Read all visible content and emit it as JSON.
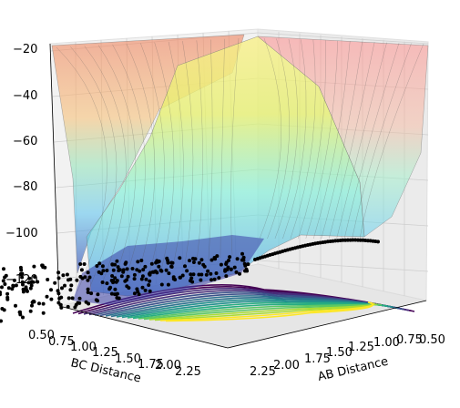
{
  "chart_data": {
    "type": "surface3d",
    "title": "",
    "z_axis": {
      "ticks": [
        "−20",
        "−40",
        "−60",
        "−80",
        "−100",
        "−120"
      ],
      "range": [
        -130,
        -20
      ]
    },
    "bc_axis": {
      "label": "BC Distance",
      "ticks": [
        "0.50",
        "0.75",
        "1.00",
        "1.25",
        "1.50",
        "1.75",
        "2.00",
        "2.25"
      ],
      "range": [
        0.5,
        2.3
      ]
    },
    "ab_axis": {
      "label": "AB Distance",
      "ticks": [
        "2.25",
        "2.00",
        "1.75",
        "1.50",
        "1.25",
        "1.00",
        "0.75",
        "0.50"
      ],
      "range": [
        0.5,
        2.3
      ]
    },
    "surface_colormap": "jet",
    "contour_colormap": "viridis",
    "trajectory_color": "#000000",
    "grid": true
  }
}
